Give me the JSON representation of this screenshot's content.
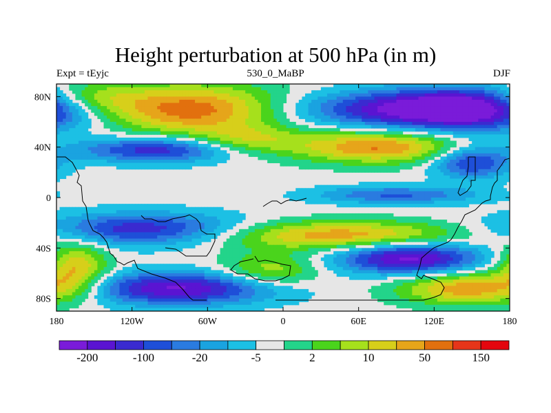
{
  "title": "Height perturbation at 500 hPa (in m)",
  "subtitle_left": "Expt = tEyjc",
  "subtitle_center": "530_0_MaBP",
  "subtitle_right": "DJF",
  "chart_data": {
    "type": "heatmap",
    "projection": "cylindrical-equidistant",
    "xlim": [
      -180,
      180
    ],
    "ylim": [
      -90,
      90
    ],
    "x_ticks": [
      {
        "value": -180,
        "label": "180"
      },
      {
        "value": -120,
        "label": "120W"
      },
      {
        "value": -60,
        "label": "60W"
      },
      {
        "value": 0,
        "label": "0"
      },
      {
        "value": 60,
        "label": "60E"
      },
      {
        "value": 120,
        "label": "120E"
      },
      {
        "value": 180,
        "label": "180"
      }
    ],
    "y_ticks": [
      {
        "value": 80,
        "label": "80N"
      },
      {
        "value": 40,
        "label": "40N"
      },
      {
        "value": 0,
        "label": "0"
      },
      {
        "value": -40,
        "label": "40S"
      },
      {
        "value": -80,
        "label": "80S"
      }
    ],
    "colorbar": {
      "colors": [
        "#7a1bd9",
        "#5a14d2",
        "#3a2ad0",
        "#1e4fd8",
        "#2a7be0",
        "#1aa3e0",
        "#1cc0e4",
        "#e6e6e6",
        "#23d48a",
        "#4ad41c",
        "#a6e01c",
        "#d7cf1a",
        "#e6a51a",
        "#e2700e",
        "#e6351a",
        "#e4060e"
      ],
      "labels": [
        {
          "boundary_index": 1,
          "text": "-200"
        },
        {
          "boundary_index": 3,
          "text": "-100"
        },
        {
          "boundary_index": 5,
          "text": "-20"
        },
        {
          "boundary_index": 7,
          "text": "-5"
        },
        {
          "boundary_index": 9,
          "text": "2"
        },
        {
          "boundary_index": 11,
          "text": "10"
        },
        {
          "boundary_index": 13,
          "text": "50"
        },
        {
          "boundary_index": 15,
          "text": "150"
        }
      ]
    },
    "field_features": [
      {
        "lon": -75,
        "lat": 70,
        "amp": 1.9,
        "slon": 55,
        "slat": 14
      },
      {
        "lon": -155,
        "lat": 78,
        "amp": 1.0,
        "slon": 28,
        "slat": 10
      },
      {
        "lon": 150,
        "lat": 70,
        "amp": -2.4,
        "slon": 48,
        "slat": 12
      },
      {
        "lon": 70,
        "lat": 70,
        "amp": -1.3,
        "slon": 55,
        "slat": 10
      },
      {
        "lon": 75,
        "lat": 40,
        "amp": 1.7,
        "slon": 48,
        "slat": 9
      },
      {
        "lon": -30,
        "lat": 45,
        "amp": 0.9,
        "slon": 30,
        "slat": 8
      },
      {
        "lon": -100,
        "lat": 38,
        "amp": -1.6,
        "slon": 45,
        "slat": 7
      },
      {
        "lon": 150,
        "lat": 28,
        "amp": -1.5,
        "slon": 22,
        "slat": 9
      },
      {
        "lon": 90,
        "lat": 2,
        "amp": -1.1,
        "slon": 45,
        "slat": 5
      },
      {
        "lon": -110,
        "lat": -25,
        "amp": -1.6,
        "slon": 55,
        "slat": 9
      },
      {
        "lon": 45,
        "lat": -30,
        "amp": 1.6,
        "slon": 70,
        "slat": 8
      },
      {
        "lon": -165,
        "lat": -55,
        "amp": 1.4,
        "slon": 18,
        "slat": 14
      },
      {
        "lon": -85,
        "lat": -72,
        "amp": -2.0,
        "slon": 55,
        "slat": 9
      },
      {
        "lon": 100,
        "lat": -48,
        "amp": -2.1,
        "slon": 40,
        "slat": 9
      },
      {
        "lon": 150,
        "lat": -72,
        "amp": 1.7,
        "slon": 40,
        "slat": 9
      },
      {
        "lon": -10,
        "lat": -58,
        "amp": 1.0,
        "slon": 28,
        "slat": 10
      }
    ]
  }
}
